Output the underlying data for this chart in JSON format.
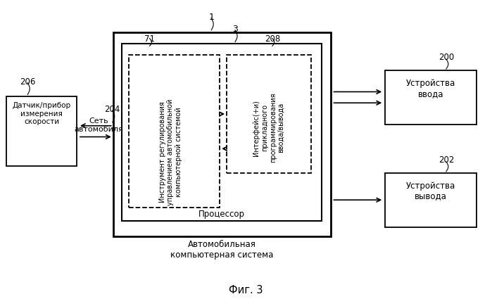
{
  "background_color": "#ffffff",
  "fig_title": "Фиг. 3",
  "labels": {
    "sensor_box": "Датчик/прибор\nизмерения\nскорости",
    "sensor_label": "206",
    "network_label": "204",
    "network_text": "Сеть\nавтомобиля",
    "main_box_label": "1",
    "inner_box_label": "3",
    "processor_box_label": "71",
    "api_box_label": "208",
    "processor_text": "Процессор",
    "main_system_text": "Автомобильная\nкомпьютерная система",
    "tool_text": "Инструмент регулирования\nуправлением автомобильной\nкомпьютерной системой",
    "api_text": "Интерфейс(+и)\nприкладного\nпрограммирования\nввода/вывода",
    "input_box": "Устройства\nввода",
    "input_label": "200",
    "output_box": "Устройства\nвывода",
    "output_label": "202"
  }
}
